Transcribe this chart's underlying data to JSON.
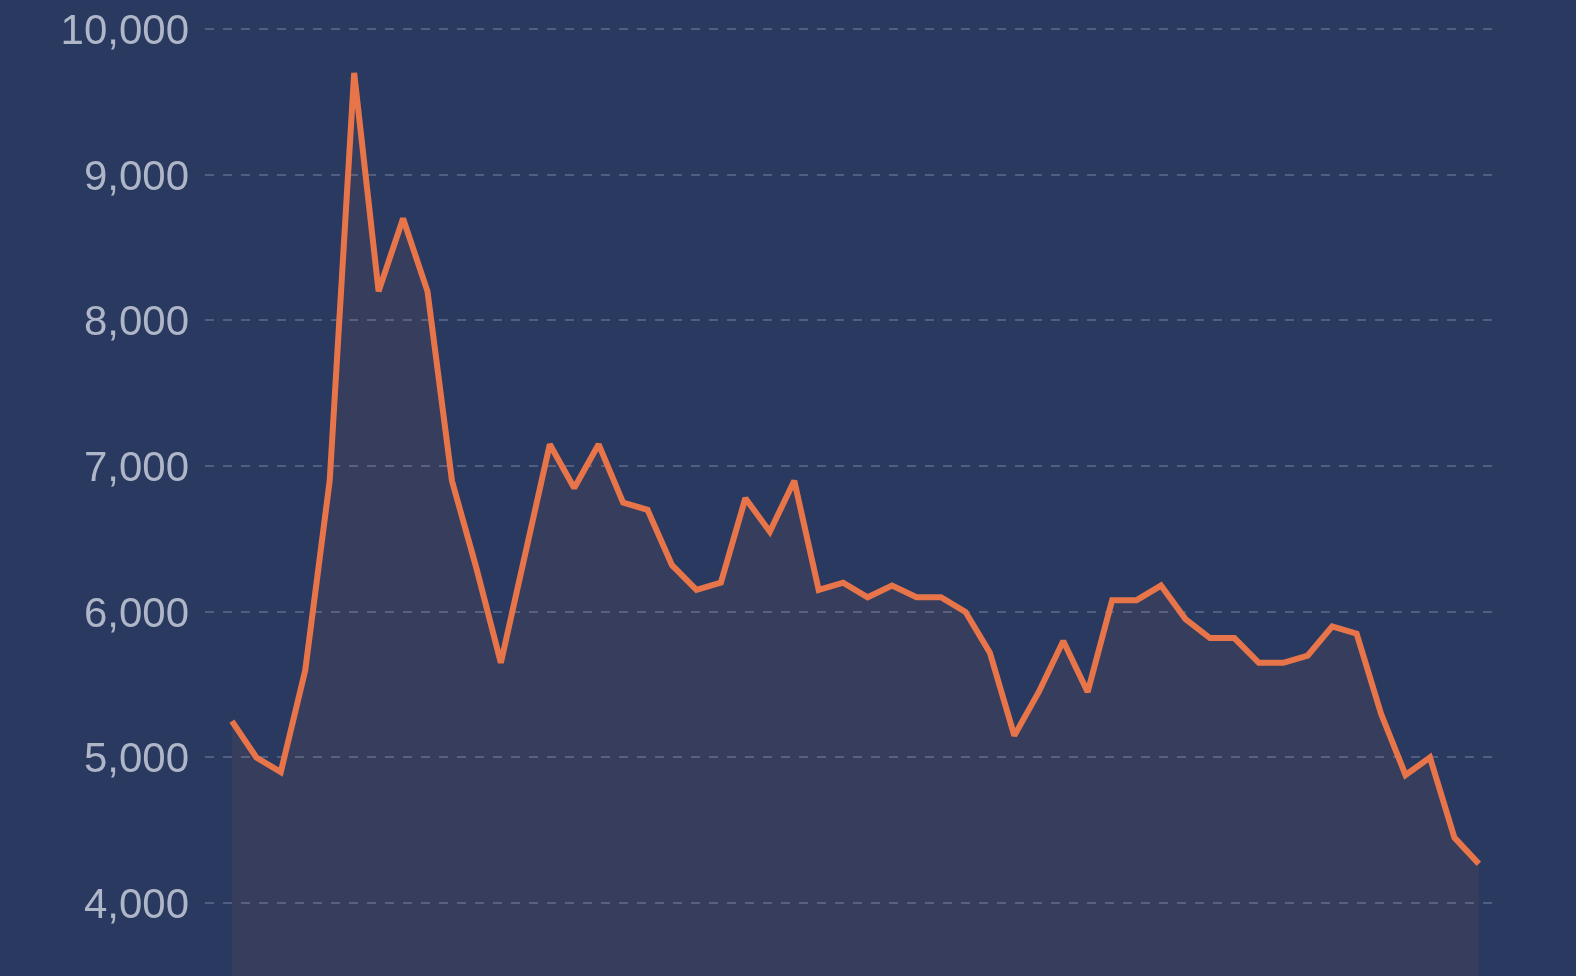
{
  "chart_data": {
    "type": "area",
    "categories": [
      null,
      null,
      null,
      null,
      null,
      null,
      null,
      null,
      null,
      null,
      null,
      null,
      null,
      null,
      null,
      null,
      null,
      null,
      null,
      null,
      null,
      null,
      null,
      null,
      null,
      null,
      null,
      null,
      null,
      null,
      null,
      null,
      null,
      null,
      null,
      null,
      null,
      null,
      null,
      null,
      null,
      null,
      null,
      null,
      null,
      null,
      null,
      null,
      null,
      null,
      null,
      null
    ],
    "series": [
      {
        "color": "#e8754a",
        "values": [
          5250,
          5000,
          4900,
          5600,
          6900,
          9700,
          8200,
          8700,
          8200,
          6900,
          6300,
          5650,
          6400,
          7150,
          6850,
          7150,
          6750,
          6700,
          6320,
          6150,
          6200,
          6780,
          6550,
          6900,
          6150,
          6200,
          6100,
          6180,
          6100,
          6100,
          6000,
          5720,
          5150,
          5450,
          5800,
          5450,
          6080,
          6080,
          6180,
          5950,
          5820,
          5820,
          5650,
          5650,
          5700,
          5900,
          5850,
          5300,
          4880,
          5000,
          4450,
          4270
        ]
      }
    ],
    "ylim": [
      3500,
      10200
    ],
    "yticks": [
      {
        "value": 4000,
        "label": "4,000"
      },
      {
        "value": 5000,
        "label": "5,000"
      },
      {
        "value": 6000,
        "label": "6,000"
      },
      {
        "value": 7000,
        "label": "7,000"
      },
      {
        "value": 8000,
        "label": "8,000"
      },
      {
        "value": 9000,
        "label": "9,000"
      },
      {
        "value": 10000,
        "label": "10,000"
      }
    ],
    "grid": "y",
    "tick_labels": "y",
    "marker": "none",
    "line_style": "solid"
  }
}
